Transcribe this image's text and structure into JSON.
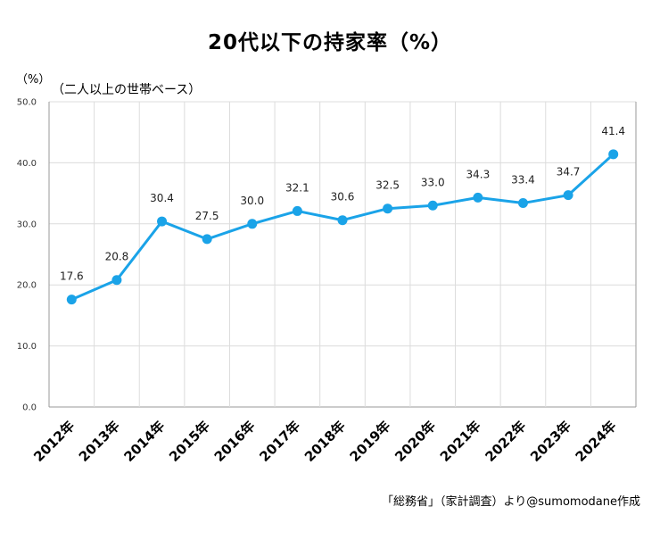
{
  "title": "20代以下の持家率（%）",
  "unit_label": "（%）",
  "subtitle": "（二人以上の世帯ベース）",
  "source": "「総務省」（家計調査）より@sumomodane作成",
  "colors": {
    "line": "#1aa3e8",
    "grid": "#dcdcdc",
    "axis": "#999999"
  },
  "chart_data": {
    "type": "line",
    "categories": [
      "2012年",
      "2013年",
      "2014年",
      "2015年",
      "2016年",
      "2017年",
      "2018年",
      "2019年",
      "2020年",
      "2021年",
      "2022年",
      "2023年",
      "2024年"
    ],
    "series": [
      {
        "values": [
          17.6,
          20.8,
          30.4,
          27.5,
          30.0,
          32.1,
          30.6,
          32.5,
          33.0,
          34.3,
          33.4,
          34.7,
          41.4
        ]
      }
    ],
    "data_labels": [
      "17.6",
      "20.8",
      "30.4",
      "27.5",
      "30.0",
      "32.1",
      "30.6",
      "32.5",
      "33.0",
      "34.3",
      "33.4",
      "34.7",
      "41.4"
    ],
    "yticks": [
      "0.0",
      "10.0",
      "20.0",
      "30.0",
      "40.0",
      "50.0"
    ],
    "ylim": [
      0,
      50
    ],
    "grid": true
  }
}
